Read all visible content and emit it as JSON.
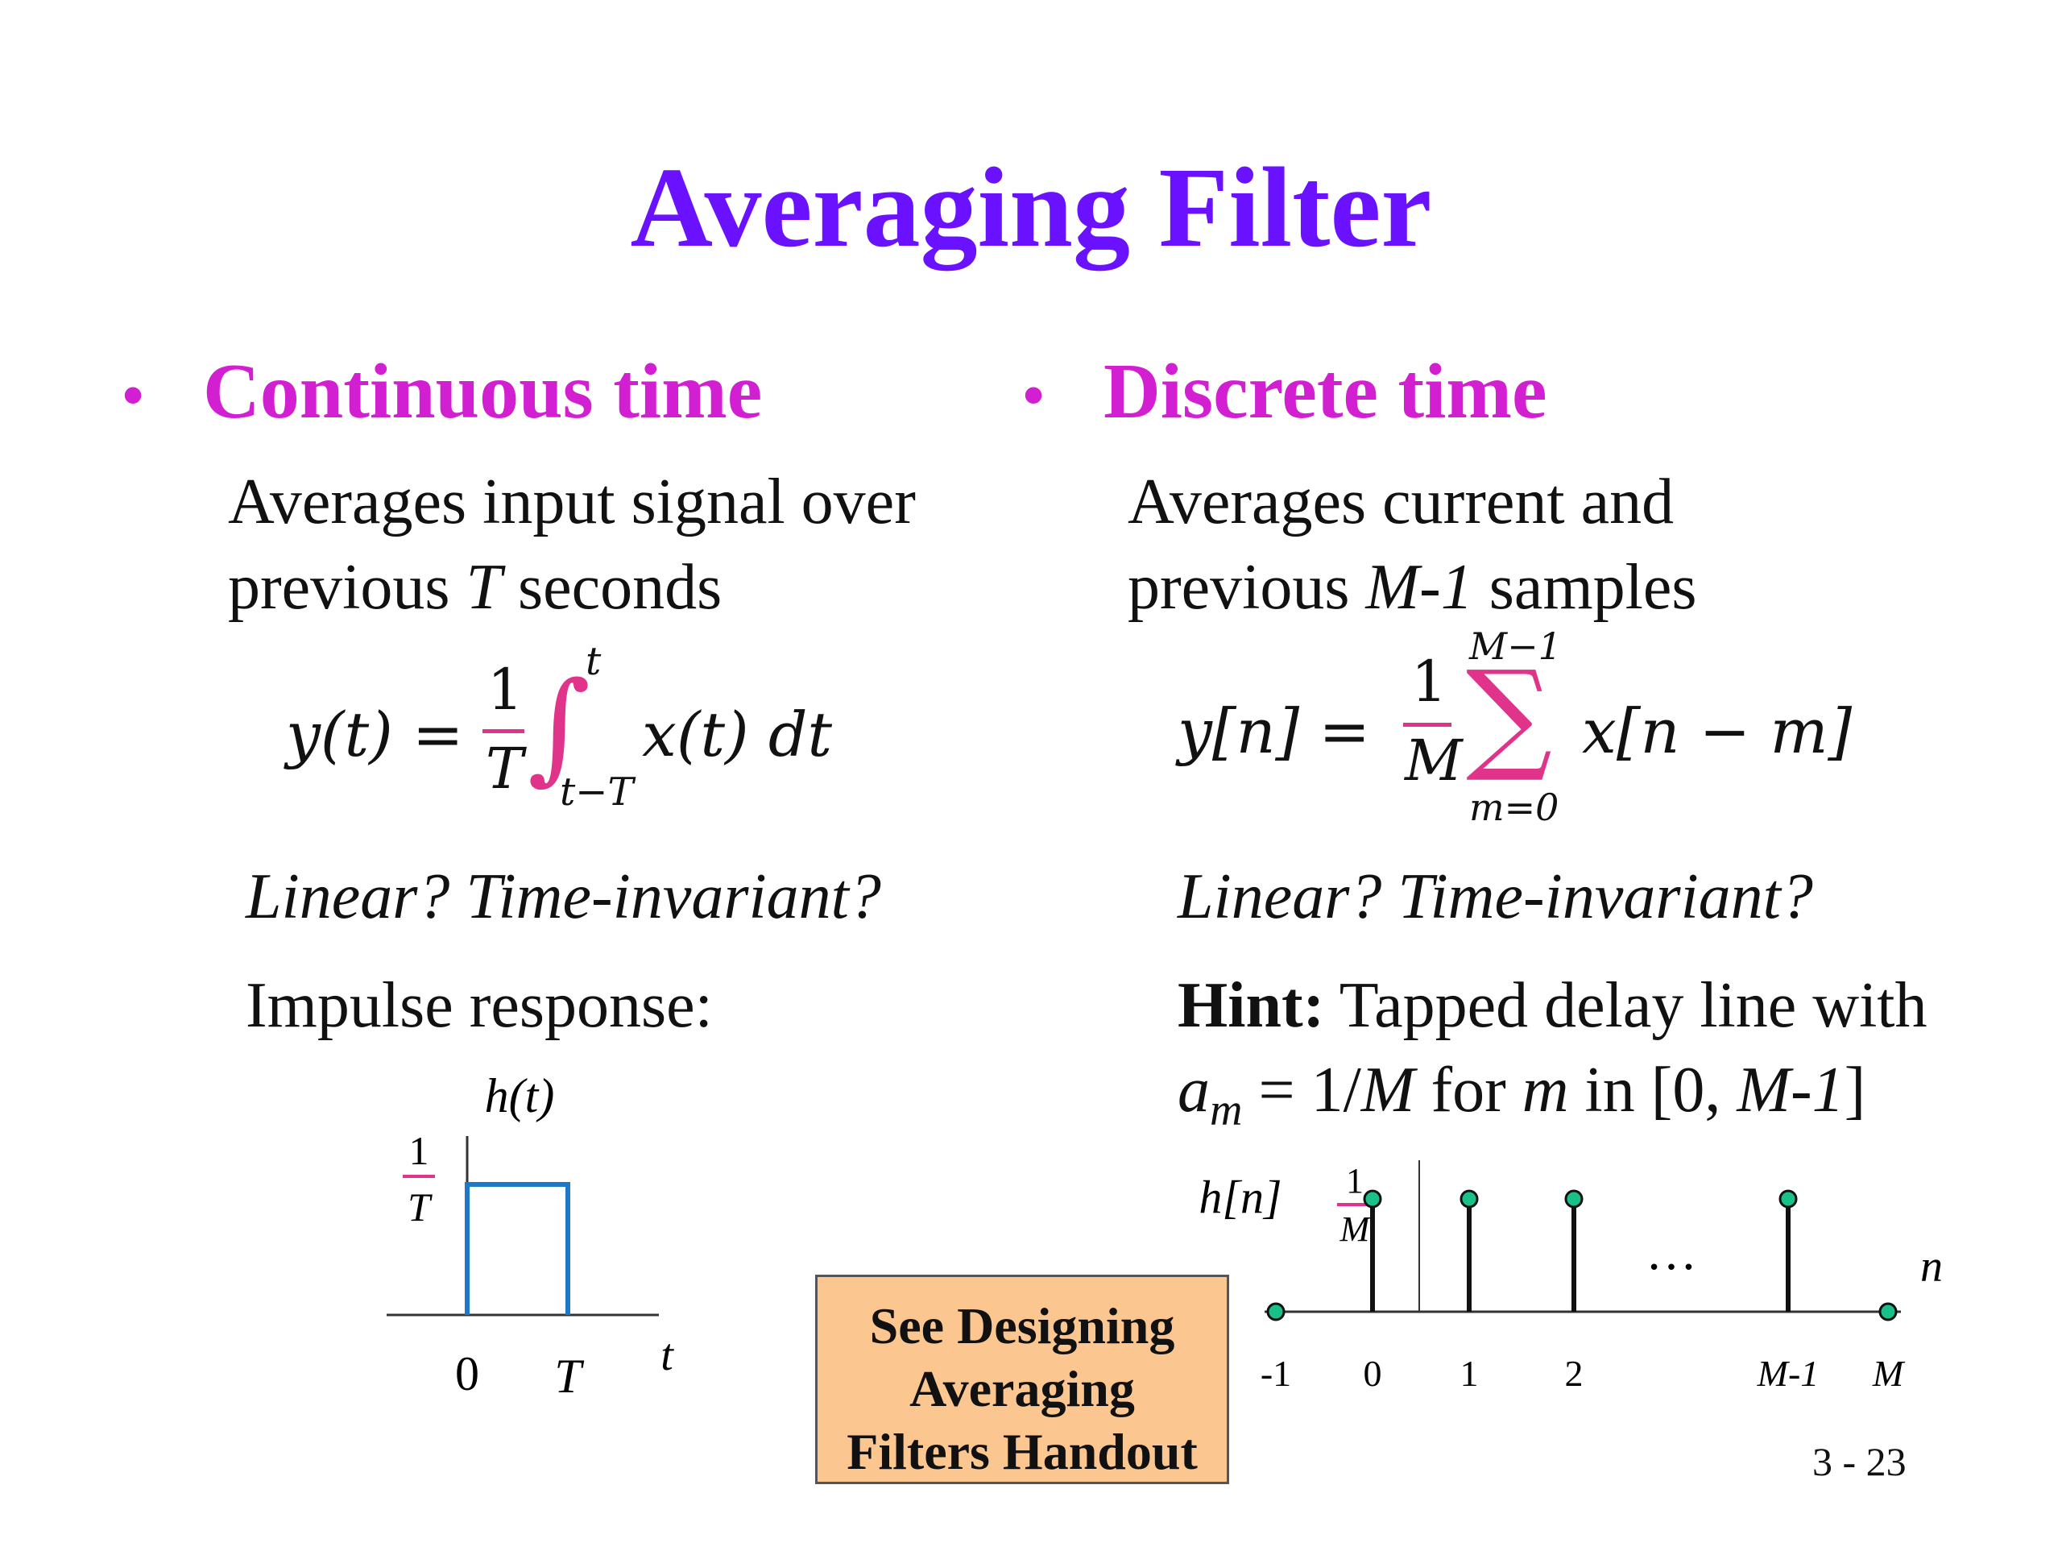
{
  "title": "Averaging Filter",
  "left": {
    "bullet": "Continuous time",
    "line1": "Averages input signal over",
    "line2_pre": "previous ",
    "line2_var": "T",
    "line2_post": " seconds",
    "formula": {
      "lhs": "y(t) =",
      "num": "1",
      "den": "T",
      "int_upper": "t",
      "int_lower": "t−T",
      "integrand": "x(t) dt"
    },
    "question": "Linear?  Time-invariant?",
    "impulse_label": "Impulse response:",
    "plot": {
      "func_label": "h(t)",
      "height_num": "1",
      "height_den": "T",
      "tick_0": "0",
      "tick_T": "T",
      "axis_label": "t"
    }
  },
  "right": {
    "bullet": "Discrete time",
    "line1": "Averages current and",
    "line2_pre": "previous ",
    "line2_var": "M-1",
    "line2_post": " samples",
    "formula": {
      "lhs": "y[n]  =",
      "num": "1",
      "den": "M",
      "sum_upper": "M−1",
      "sum_lower": "m=0",
      "sum_symbol": "∑",
      "summand": "x[n − m]"
    },
    "question": "Linear?  Time-invariant?",
    "hint_bold": "Hint:",
    "hint_text": " Tapped delay line with",
    "hint2": {
      "a": "a",
      "sub": "m",
      "eq": " = 1/",
      "M": "M",
      "for": " for ",
      "m": "m",
      "in": " in [0, ",
      "range_end": "M-1",
      "close": "]"
    },
    "plot": {
      "func_label": "h[n]",
      "height_num": "1",
      "height_den": "M",
      "dots": "…",
      "axis_label": "n",
      "ticks": [
        "-1",
        "0",
        "1",
        "2",
        "M-1",
        "M"
      ]
    }
  },
  "handout": {
    "line1": "See Designing",
    "line2": "Averaging",
    "line3": "Filters Handout"
  },
  "slide_number": "3 - 23",
  "colors": {
    "title": "#6a12ff",
    "bullet": "#d21fd2",
    "fraction_bar": "#e0338a",
    "pulse": "#1f77c8",
    "stem_marker": "#19c08a",
    "handout_bg": "#fbc68f"
  },
  "chart_data": [
    {
      "type": "line",
      "title": "",
      "ylabel": "h(t)",
      "xlabel": "t",
      "x": [
        0,
        0,
        1,
        1
      ],
      "y": [
        0,
        1,
        1,
        0
      ],
      "notes_units": "x in units of T, y in units of 1/T"
    },
    {
      "type": "scatter",
      "title": "",
      "ylabel": "h[n]",
      "xlabel": "n",
      "categories": [
        "-1",
        "0",
        "1",
        "2",
        "M-1",
        "M"
      ],
      "values": [
        0,
        1,
        1,
        1,
        1,
        0
      ],
      "notes_units": "y in units of 1/M"
    }
  ]
}
